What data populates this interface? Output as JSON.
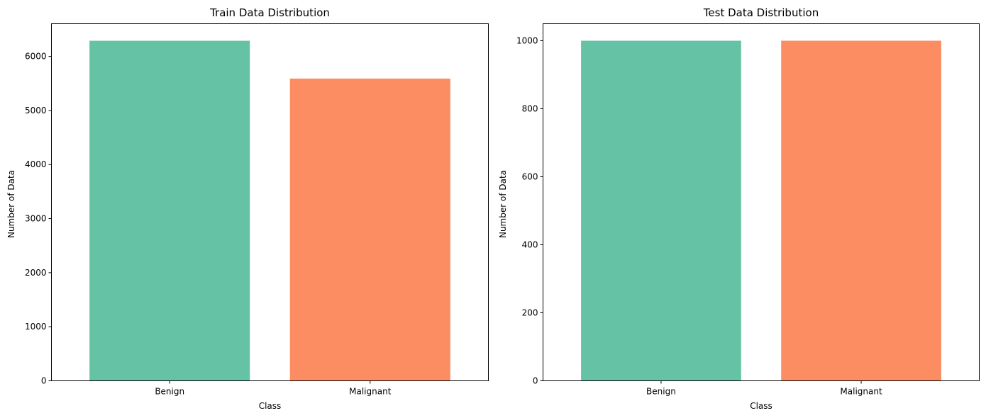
{
  "chart_data": [
    {
      "type": "bar",
      "title": "Train Data Distribution",
      "xlabel": "Class",
      "ylabel": "Number of Data",
      "categories": [
        "Benign",
        "Malignant"
      ],
      "values": [
        6289,
        5590
      ],
      "colors": [
        "#66c2a5",
        "#fc8d62"
      ],
      "ylim": [
        0,
        6604
      ],
      "yticks": [
        0,
        1000,
        2000,
        3000,
        4000,
        5000,
        6000
      ],
      "grid": false
    },
    {
      "type": "bar",
      "title": "Test Data Distribution",
      "xlabel": "Class",
      "ylabel": "Number of Data",
      "categories": [
        "Benign",
        "Malignant"
      ],
      "values": [
        1000,
        1000
      ],
      "colors": [
        "#66c2a5",
        "#fc8d62"
      ],
      "ylim": [
        0,
        1050
      ],
      "yticks": [
        0,
        200,
        400,
        600,
        800,
        1000
      ],
      "grid": false
    }
  ]
}
